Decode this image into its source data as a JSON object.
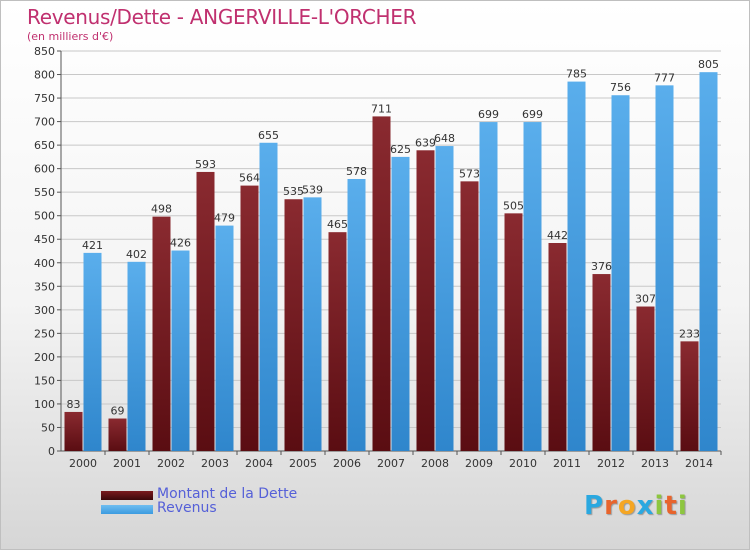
{
  "title": "Revenus/Dette - ANGERVILLE-L'ORCHER",
  "subtitle": "(en milliers d'€)",
  "logo": {
    "letters": [
      "P",
      "r",
      "o",
      "x",
      "i",
      "t",
      "i"
    ],
    "colors": [
      "#2aa8e0",
      "#e8642c",
      "#f5a623",
      "#2aa8e0",
      "#8dc63f",
      "#e8642c",
      "#8dc63f"
    ]
  },
  "legend": [
    {
      "label": "Montant de la Dette",
      "color": "#7a1a1e"
    },
    {
      "label": "Revenus",
      "color": "#3b9be0"
    }
  ],
  "chart_data": {
    "type": "bar",
    "categories": [
      "2000",
      "2001",
      "2002",
      "2003",
      "2004",
      "2005",
      "2006",
      "2007",
      "2008",
      "2009",
      "2010",
      "2011",
      "2012",
      "2013",
      "2014"
    ],
    "series": [
      {
        "name": "Montant de la Dette",
        "color": "#7a1a1e",
        "values": [
          83,
          69,
          498,
          593,
          564,
          535,
          465,
          711,
          639,
          573,
          505,
          442,
          376,
          307,
          233
        ]
      },
      {
        "name": "Revenus",
        "color": "#3b9be0",
        "values": [
          421,
          402,
          426,
          479,
          655,
          539,
          578,
          625,
          648,
          699,
          699,
          785,
          756,
          777,
          805
        ]
      }
    ],
    "ylim": [
      0,
      850
    ],
    "yticks": [
      0,
      50,
      100,
      150,
      200,
      250,
      300,
      350,
      400,
      450,
      500,
      550,
      600,
      650,
      700,
      750,
      800,
      850
    ],
    "grid": true
  }
}
